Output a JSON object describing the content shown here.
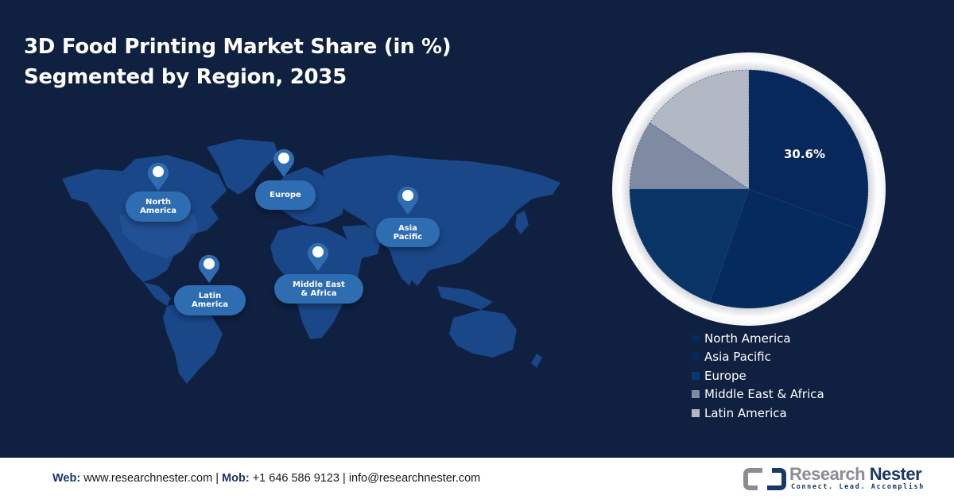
{
  "header": {
    "title_line1": "3D Food Printing Market Share (in %)",
    "title_line2": "Segmented by Region, 2035"
  },
  "map": {
    "pins": [
      {
        "label_line1": "North",
        "label_line2": "America"
      },
      {
        "label_line1": "Europe",
        "label_line2": ""
      },
      {
        "label_line1": "Asia",
        "label_line2": "Pacific"
      },
      {
        "label_line1": "Latin",
        "label_line2": "America"
      },
      {
        "label_line1": "Middle East",
        "label_line2": "& Africa"
      }
    ]
  },
  "chart_data": {
    "type": "pie",
    "title": "3D Food Printing Market Share (in %) Segmented by Region, 2035",
    "categories": [
      "North America",
      "Asia Pacific",
      "Europe",
      "Middle East & Africa",
      "Latin America"
    ],
    "values": [
      30.6,
      24.7,
      19.7,
      9.4,
      15.6
    ],
    "colors": [
      "#06285a",
      "#052a5c",
      "#083466",
      "#7f8aa3",
      "#b3b8c5"
    ],
    "data_labels": [
      "30.6%",
      "",
      "",
      "",
      ""
    ],
    "start_angle_deg": 0,
    "direction": "clockwise",
    "legend_position": "bottom-right"
  },
  "pie": {
    "label": "30.6%"
  },
  "legend": {
    "items": [
      {
        "label": "North America",
        "color": "#06285a"
      },
      {
        "label": "Asia Pacific",
        "color": "#052a5c"
      },
      {
        "label": "Europe",
        "color": "#0b3a72"
      },
      {
        "label": "Middle East & Africa",
        "color": "#7f8aa3"
      },
      {
        "label": "Latin America",
        "color": "#b3b8c5"
      }
    ]
  },
  "footer": {
    "web_label": "Web:",
    "web_value": "www.researchnester.com",
    "sep1": "|",
    "mob_label": "Mob:",
    "mob_value": "+1 646 586 9123",
    "sep2": "|",
    "email": "info@researchnester.com",
    "logo_word1": "Research",
    "logo_word2": "Nester",
    "logo_tagline": "Connect. Lead. Accomplish"
  }
}
